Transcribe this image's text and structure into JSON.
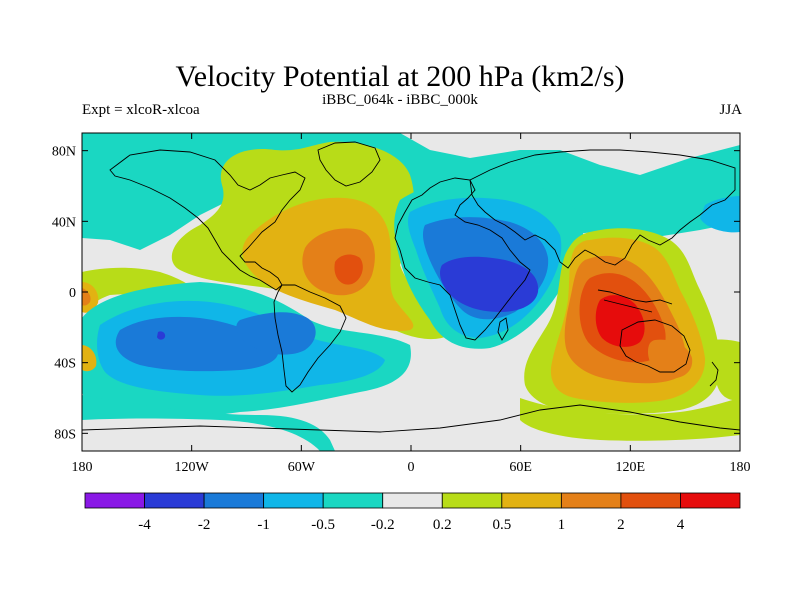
{
  "title": "Velocity Potential at 200 hPa (km2/s)",
  "left_subtitle": "Expt = xlcoR-xlcoa",
  "center_subtitle": "iBBC_064k - iBBC_000k",
  "right_subtitle": "JJA",
  "map": {
    "lon_range": [
      -180,
      180
    ],
    "lat_range": [
      -90,
      90
    ],
    "x_ticks": [
      {
        "lon": -180,
        "label": "180"
      },
      {
        "lon": -120,
        "label": "120W"
      },
      {
        "lon": -60,
        "label": "60W"
      },
      {
        "lon": 0,
        "label": "0"
      },
      {
        "lon": 60,
        "label": "60E"
      },
      {
        "lon": 120,
        "label": "120E"
      },
      {
        "lon": 180,
        "label": "180"
      }
    ],
    "y_ticks": [
      {
        "lat": 80,
        "label": "80N"
      },
      {
        "lat": 40,
        "label": "40N"
      },
      {
        "lat": 0,
        "label": "0"
      },
      {
        "lat": -40,
        "label": "40S"
      },
      {
        "lat": -80,
        "label": "80S"
      }
    ]
  },
  "colorbar": {
    "levels": [
      "-4",
      "-2",
      "-1",
      "-0.5",
      "-0.2",
      "0.2",
      "0.5",
      "1",
      "2",
      "4"
    ],
    "colors": [
      "#8a18e6",
      "#2a3bd6",
      "#1a7ad8",
      "#10b6e8",
      "#1ad7c2",
      "#e8e8e8",
      "#b8dc18",
      "#e2b212",
      "#e48018",
      "#e2500e",
      "#e60c0c"
    ]
  }
}
